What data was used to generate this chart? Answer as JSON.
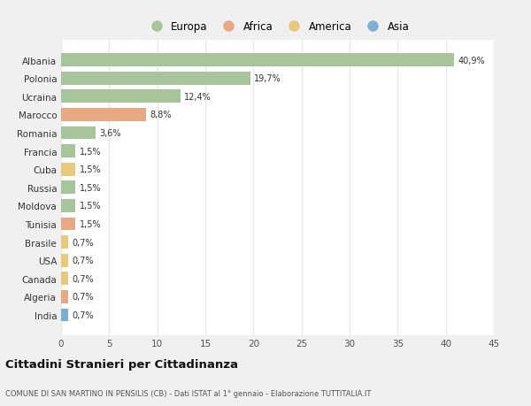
{
  "countries": [
    "Albania",
    "Polonia",
    "Ucraina",
    "Marocco",
    "Romania",
    "Francia",
    "Cuba",
    "Russia",
    "Moldova",
    "Tunisia",
    "Brasile",
    "USA",
    "Canada",
    "Algeria",
    "India"
  ],
  "values": [
    40.9,
    19.7,
    12.4,
    8.8,
    3.6,
    1.5,
    1.5,
    1.5,
    1.5,
    1.5,
    0.7,
    0.7,
    0.7,
    0.7,
    0.7
  ],
  "labels": [
    "40,9%",
    "19,7%",
    "12,4%",
    "8,8%",
    "3,6%",
    "1,5%",
    "1,5%",
    "1,5%",
    "1,5%",
    "1,5%",
    "0,7%",
    "0,7%",
    "0,7%",
    "0,7%",
    "0,7%"
  ],
  "continents": [
    "Europa",
    "Europa",
    "Europa",
    "Africa",
    "Europa",
    "Europa",
    "America",
    "Europa",
    "Europa",
    "Africa",
    "America",
    "America",
    "America",
    "Africa",
    "Asia"
  ],
  "colors": {
    "Europa": "#a8c49a",
    "Africa": "#e8a882",
    "America": "#e8c87a",
    "Asia": "#7bafd4"
  },
  "xlim": [
    0,
    45
  ],
  "xticks": [
    0,
    5,
    10,
    15,
    20,
    25,
    30,
    35,
    40,
    45
  ],
  "title": "Cittadini Stranieri per Cittadinanza",
  "subtitle": "COMUNE DI SAN MARTINO IN PENSILIS (CB) - Dati ISTAT al 1° gennaio - Elaborazione TUTTITALIA.IT",
  "bg_color": "#f0f0f0",
  "bar_bg_color": "#ffffff",
  "grid_color": "#e8e8e8"
}
